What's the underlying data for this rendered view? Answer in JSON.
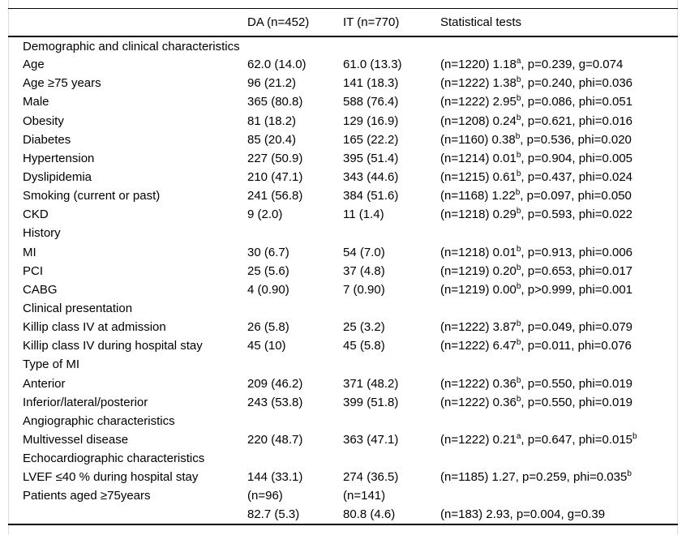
{
  "table": {
    "columns": [
      "",
      "DA (n=452)",
      "IT (n=770)",
      "Statistical tests"
    ],
    "rows": [
      {
        "label": "Demographic and clinical characteristics",
        "da": "",
        "it": "",
        "stats": []
      },
      {
        "label": "Age",
        "da": "62.0 (14.0)",
        "it": "61.0 (13.3)",
        "stats": [
          "(n=1220) 1.18",
          {
            "sup": "a"
          },
          ", p=0.239, g=0.074"
        ]
      },
      {
        "label": "Age ≥75 years",
        "da": "96 (21.2)",
        "it": "141 (18.3)",
        "stats": [
          "(n=1222) 1.38",
          {
            "sup": "b"
          },
          ", p=0.240, phi=0.036"
        ]
      },
      {
        "label": "Male",
        "da": "365 (80.8)",
        "it": "588 (76.4)",
        "stats": [
          "(n=1222) 2.95",
          {
            "sup": "b"
          },
          ", p=0.086, phi=0.051"
        ]
      },
      {
        "label": "Obesity",
        "da": "81 (18.2)",
        "it": "129 (16.9)",
        "stats": [
          "(n=1208) 0.24",
          {
            "sup": "b"
          },
          ", p=0.621, phi=0.016"
        ]
      },
      {
        "label": "Diabetes",
        "da": "85 (20.4)",
        "it": "165 (22.2)",
        "stats": [
          "(n=1160) 0.38",
          {
            "sup": "b"
          },
          ", p=0.536, phi=0.020"
        ]
      },
      {
        "label": "Hypertension",
        "da": "227 (50.9)",
        "it": "395 (51.4)",
        "stats": [
          "(n=1214) 0.01",
          {
            "sup": "b"
          },
          ", p=0.904, phi=0.005"
        ]
      },
      {
        "label": "Dyslipidemia",
        "da": "210 (47.1)",
        "it": "343 (44.6)",
        "stats": [
          "(n=1215) 0.61",
          {
            "sup": "b"
          },
          ", p=0.437, phi=0.024"
        ]
      },
      {
        "label": "Smoking (current or past)",
        "da": "241 (56.8)",
        "it": "384 (51.6)",
        "stats": [
          "(n=1168) 1.22",
          {
            "sup": "b"
          },
          ", p=0.097, phi=0.050"
        ]
      },
      {
        "label": "CKD",
        "da": "9 (2.0)",
        "it": "11 (1.4)",
        "stats": [
          "(n=1218) 0.29",
          {
            "sup": "b"
          },
          ", p=0.593, phi=0.022"
        ]
      },
      {
        "label": "History",
        "da": "",
        "it": "",
        "stats": []
      },
      {
        "label": "MI",
        "da": "30 (6.7)",
        "it": "54 (7.0)",
        "stats": [
          "(n=1218) 0.01",
          {
            "sup": "b"
          },
          ", p=0.913, phi=0.006"
        ]
      },
      {
        "label": "PCI",
        "da": "25 (5.6)",
        "it": "37 (4.8)",
        "stats": [
          "(n=1219) 0.20",
          {
            "sup": "b"
          },
          ", p=0.653, phi=0.017"
        ]
      },
      {
        "label": "CABG",
        "da": "4 (0.90)",
        "it": "7 (0.90)",
        "stats": [
          "(n=1219) 0.00",
          {
            "sup": "b"
          },
          ", p>0.999, phi=0.001"
        ]
      },
      {
        "label": "Clinical presentation",
        "da": "",
        "it": "",
        "stats": []
      },
      {
        "label": "Killip class IV at admission",
        "da": "26 (5.8)",
        "it": "25 (3.2)",
        "stats": [
          "(n=1222) 3.87",
          {
            "sup": "b"
          },
          ", p=0.049, phi=0.079"
        ]
      },
      {
        "label": "Killip class IV during hospital stay",
        "da": "45 (10)",
        "it": "45 (5.8)",
        "stats": [
          "(n=1222) 6.47",
          {
            "sup": "b"
          },
          ", p=0.011, phi=0.076"
        ]
      },
      {
        "label": "Type of MI",
        "da": "",
        "it": "",
        "stats": []
      },
      {
        "label": "Anterior",
        "da": "209 (46.2)",
        "it": "371 (48.2)",
        "stats": [
          "(n=1222) 0.36",
          {
            "sup": "b"
          },
          ", p=0.550, phi=0.019"
        ]
      },
      {
        "label": "Inferior/lateral/posterior",
        "da": "243 (53.8)",
        "it": "399 (51.8)",
        "stats": [
          "(n=1222) 0.36",
          {
            "sup": "b"
          },
          ", p=0.550, phi=0.019"
        ]
      },
      {
        "label": "Angiographic characteristics",
        "da": "",
        "it": "",
        "stats": []
      },
      {
        "label": "Multivessel disease",
        "da": "220 (48.7)",
        "it": "363 (47.1)",
        "stats": [
          "(n=1222) 0.21",
          {
            "sup": "a"
          },
          ", p=0.647, phi=0.015",
          {
            "sup": "b"
          }
        ]
      },
      {
        "label": "Echocardiographic characteristics",
        "da": "",
        "it": "",
        "stats": []
      },
      {
        "label": "LVEF ≤40 % during hospital stay",
        "da": "144 (33.1)",
        "it": "274 (36.5)",
        "stats": [
          "(n=1185) 1.27, p=0.259, phi=0.035",
          {
            "sup": "b"
          }
        ]
      },
      {
        "label": "Patients aged ≥75years",
        "da": "(n=96)",
        "it": "(n=141)",
        "stats": []
      },
      {
        "label": "",
        "da": "82.7 (5.3)",
        "it": "80.8 (4.6)",
        "stats": [
          "(n=183) 2.93, p=0.004, g=0.39"
        ]
      }
    ]
  }
}
